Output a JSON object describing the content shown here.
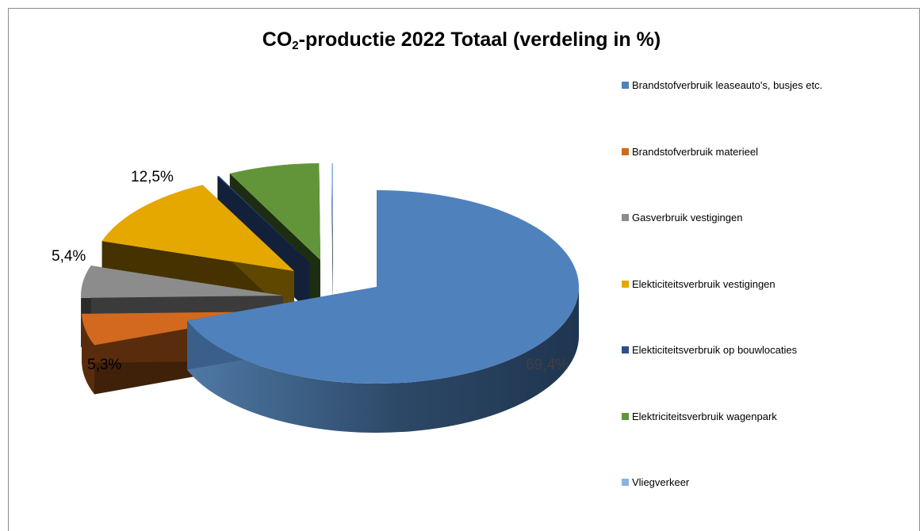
{
  "chart_data": {
    "type": "pie",
    "title_main": "CO",
    "title_sub": "2",
    "title_rest": "-productie 2022 Totaal (verdeling in %)",
    "slices": [
      {
        "name": "Brandstofverbruik leaseauto's, busjes etc.",
        "value": 69.4,
        "label": "69,4%",
        "color": "#4f81bd",
        "label_color": "#404040"
      },
      {
        "name": "Brandstofverbruik materieel",
        "value": 5.3,
        "label": "5,3%",
        "color": "#d2691e",
        "label_color": "#000000"
      },
      {
        "name": "Gasverbruik vestigingen",
        "value": 5.4,
        "label": "5,4%",
        "color": "#8c8c8c",
        "label_color": "#000000"
      },
      {
        "name": "Elekticiteitsverbruik vestigingen",
        "value": 12.5,
        "label": "12,5%",
        "color": "#e5a800",
        "label_color": "#000000"
      },
      {
        "name": "Elekticiteitsverbruik op bouwlocaties",
        "value": 0.1,
        "label": "",
        "color": "#2e4d8a",
        "label_color": "#000000"
      },
      {
        "name": "Elektriciteitsverbruik wagenpark",
        "value": 7.3,
        "label": "",
        "color": "#62953a",
        "label_color": "#000000"
      },
      {
        "name": "Vliegverkeer",
        "value": 0.1,
        "label": "",
        "color": "#8db3e2",
        "label_color": "#000000"
      }
    ],
    "legend_position": "right",
    "style": "3d-exploded"
  }
}
